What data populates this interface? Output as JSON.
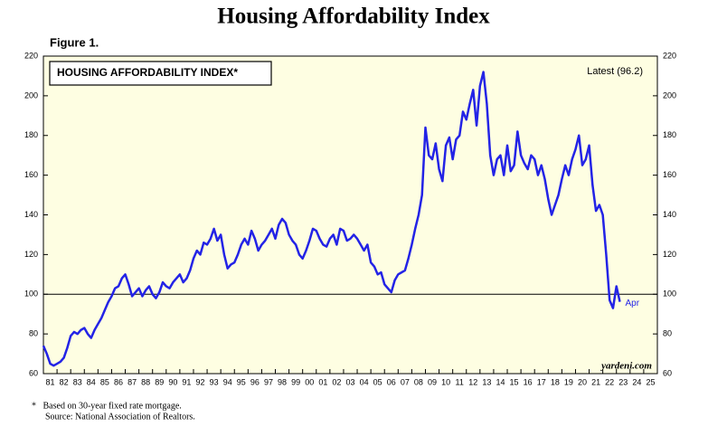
{
  "chart_data": {
    "type": "line",
    "title": "Housing Affordability Index",
    "figure_label": "Figure 1.",
    "box_label": "HOUSING AFFORDABILITY INDEX*",
    "latest_label": "Latest (96.2)",
    "end_label": "Apr",
    "watermark": "yardeni.com",
    "footnotes": [
      "*   Based on 30-year fixed rate mortgage.",
      "Source: National Association of Realtors."
    ],
    "reference_line": 100,
    "background": "#fefee2",
    "grid": false,
    "xlim": [
      1981,
      2026
    ],
    "ylim": [
      60,
      220
    ],
    "yticks": [
      60,
      80,
      100,
      120,
      140,
      160,
      180,
      200,
      220
    ],
    "xticks": [
      {
        "value": 1981,
        "label": "81"
      },
      {
        "value": 1982,
        "label": "82"
      },
      {
        "value": 1983,
        "label": "83"
      },
      {
        "value": 1984,
        "label": "84"
      },
      {
        "value": 1985,
        "label": "85"
      },
      {
        "value": 1986,
        "label": "86"
      },
      {
        "value": 1987,
        "label": "87"
      },
      {
        "value": 1988,
        "label": "88"
      },
      {
        "value": 1989,
        "label": "89"
      },
      {
        "value": 1990,
        "label": "90"
      },
      {
        "value": 1991,
        "label": "91"
      },
      {
        "value": 1992,
        "label": "92"
      },
      {
        "value": 1993,
        "label": "93"
      },
      {
        "value": 1994,
        "label": "94"
      },
      {
        "value": 1995,
        "label": "95"
      },
      {
        "value": 1996,
        "label": "96"
      },
      {
        "value": 1997,
        "label": "97"
      },
      {
        "value": 1998,
        "label": "98"
      },
      {
        "value": 1999,
        "label": "99"
      },
      {
        "value": 2000,
        "label": "00"
      },
      {
        "value": 2001,
        "label": "01"
      },
      {
        "value": 2002,
        "label": "02"
      },
      {
        "value": 2003,
        "label": "03"
      },
      {
        "value": 2004,
        "label": "04"
      },
      {
        "value": 2005,
        "label": "05"
      },
      {
        "value": 2006,
        "label": "06"
      },
      {
        "value": 2007,
        "label": "07"
      },
      {
        "value": 2008,
        "label": "08"
      },
      {
        "value": 2009,
        "label": "09"
      },
      {
        "value": 2010,
        "label": "10"
      },
      {
        "value": 2011,
        "label": "11"
      },
      {
        "value": 2012,
        "label": "12"
      },
      {
        "value": 2013,
        "label": "13"
      },
      {
        "value": 2014,
        "label": "14"
      },
      {
        "value": 2015,
        "label": "15"
      },
      {
        "value": 2016,
        "label": "16"
      },
      {
        "value": 2017,
        "label": "17"
      },
      {
        "value": 2018,
        "label": "18"
      },
      {
        "value": 2019,
        "label": "19"
      },
      {
        "value": 2020,
        "label": "20"
      },
      {
        "value": 2021,
        "label": "21"
      },
      {
        "value": 2022,
        "label": "22"
      },
      {
        "value": 2023,
        "label": "23"
      },
      {
        "value": 2024,
        "label": "24"
      },
      {
        "value": 2025,
        "label": "25"
      }
    ],
    "x": [
      1981,
      1981.25,
      1981.5,
      1981.75,
      1982,
      1982.25,
      1982.5,
      1982.75,
      1983,
      1983.25,
      1983.5,
      1983.75,
      1984,
      1984.25,
      1984.5,
      1984.75,
      1985,
      1985.25,
      1985.5,
      1985.75,
      1986,
      1986.25,
      1986.5,
      1986.75,
      1987,
      1987.25,
      1987.5,
      1987.75,
      1988,
      1988.25,
      1988.5,
      1988.75,
      1989,
      1989.25,
      1989.5,
      1989.75,
      1990,
      1990.25,
      1990.5,
      1990.75,
      1991,
      1991.25,
      1991.5,
      1991.75,
      1992,
      1992.25,
      1992.5,
      1992.75,
      1993,
      1993.25,
      1993.5,
      1993.75,
      1994,
      1994.25,
      1994.5,
      1994.75,
      1995,
      1995.25,
      1995.5,
      1995.75,
      1996,
      1996.25,
      1996.5,
      1996.75,
      1997,
      1997.25,
      1997.5,
      1997.75,
      1998,
      1998.25,
      1998.5,
      1998.75,
      1999,
      1999.25,
      1999.5,
      1999.75,
      2000,
      2000.25,
      2000.5,
      2000.75,
      2001,
      2001.25,
      2001.5,
      2001.75,
      2002,
      2002.25,
      2002.5,
      2002.75,
      2003,
      2003.25,
      2003.5,
      2003.75,
      2004,
      2004.25,
      2004.5,
      2004.75,
      2005,
      2005.25,
      2005.5,
      2005.75,
      2006,
      2006.25,
      2006.5,
      2006.75,
      2007,
      2007.25,
      2007.5,
      2007.75,
      2008,
      2008.25,
      2008.5,
      2008.75,
      2009,
      2009.25,
      2009.5,
      2009.75,
      2010,
      2010.25,
      2010.5,
      2010.75,
      2011,
      2011.25,
      2011.5,
      2011.75,
      2012,
      2012.25,
      2012.5,
      2012.75,
      2013,
      2013.25,
      2013.5,
      2013.75,
      2014,
      2014.25,
      2014.5,
      2014.75,
      2015,
      2015.25,
      2015.5,
      2015.75,
      2016,
      2016.25,
      2016.5,
      2016.75,
      2017,
      2017.25,
      2017.5,
      2017.75,
      2018,
      2018.25,
      2018.5,
      2018.75,
      2019,
      2019.25,
      2019.5,
      2019.75,
      2020,
      2020.25,
      2020.5,
      2020.75,
      2021,
      2021.25,
      2021.5,
      2021.75,
      2022,
      2022.25,
      2022.5,
      2022.75,
      2023,
      2023.25
    ],
    "series": [
      {
        "name": "Housing Affordability Index",
        "color": "#2323e6",
        "values": [
          74,
          70,
          65,
          64,
          65,
          66,
          68,
          73,
          79,
          81,
          80,
          82,
          83,
          80,
          78,
          82,
          85,
          88,
          92,
          96,
          99,
          103,
          104,
          108,
          110,
          105,
          99,
          101,
          103,
          99,
          102,
          104,
          100,
          98,
          101,
          106,
          104,
          103,
          106,
          108,
          110,
          106,
          108,
          112,
          118,
          122,
          120,
          126,
          125,
          128,
          133,
          127,
          130,
          120,
          113,
          115,
          116,
          120,
          125,
          128,
          125,
          132,
          128,
          122,
          125,
          127,
          130,
          133,
          128,
          135,
          138,
          136,
          130,
          127,
          125,
          120,
          118,
          122,
          127,
          133,
          132,
          128,
          125,
          124,
          128,
          130,
          125,
          133,
          132,
          127,
          128,
          130,
          128,
          125,
          122,
          125,
          116,
          114,
          110,
          111,
          105,
          103,
          101,
          107,
          110,
          111,
          112,
          118,
          125,
          133,
          140,
          150,
          184,
          170,
          168,
          176,
          163,
          157,
          175,
          179,
          168,
          178,
          180,
          192,
          188,
          196,
          203,
          185,
          205,
          212,
          196,
          170,
          160,
          168,
          170,
          160,
          175,
          162,
          165,
          182,
          170,
          166,
          163,
          170,
          168,
          160,
          165,
          158,
          148,
          140,
          145,
          150,
          158,
          165,
          160,
          168,
          173,
          180,
          165,
          168,
          175,
          155,
          142,
          145,
          140,
          120,
          97,
          93,
          104,
          96.2
        ]
      }
    ]
  }
}
